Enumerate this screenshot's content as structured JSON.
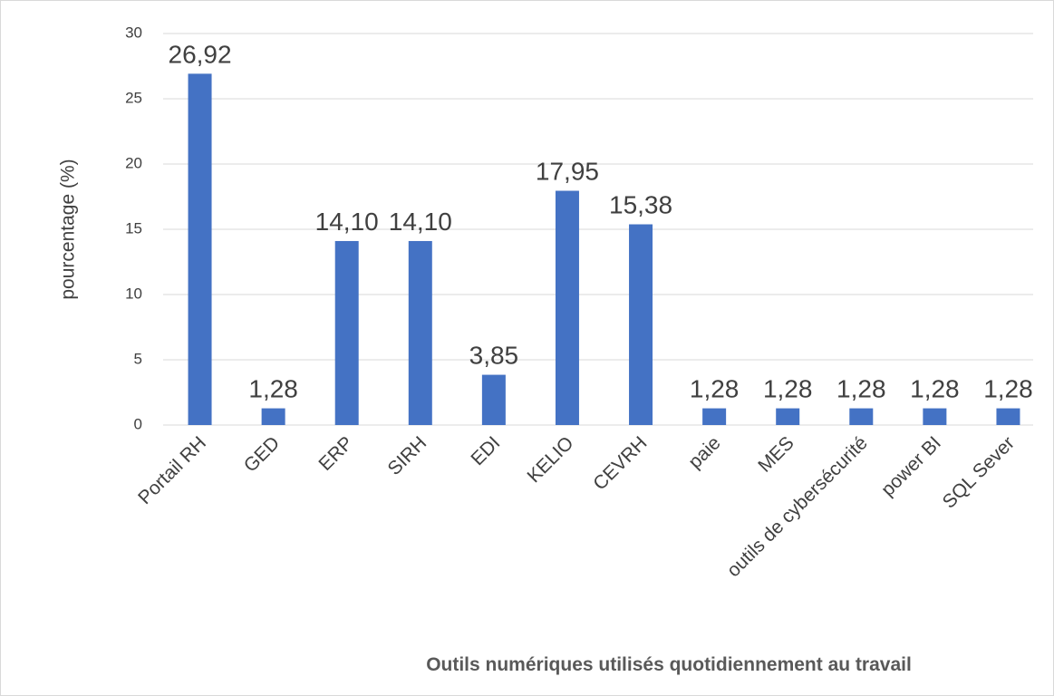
{
  "chart_data": {
    "type": "bar",
    "categories": [
      "Portail RH",
      "GED",
      "ERP",
      "SIRH",
      "EDI",
      "KELIO",
      "CEVRH",
      "paie",
      "MES",
      "outils de cybersécurité",
      "power BI",
      "SQL Sever"
    ],
    "values": [
      26.92,
      1.28,
      14.1,
      14.1,
      3.85,
      17.95,
      15.38,
      1.28,
      1.28,
      1.28,
      1.28,
      1.28
    ],
    "value_labels": [
      "26,92",
      "1,28",
      "14,10",
      "14,10",
      "3,85",
      "17,95",
      "15,38",
      "1,28",
      "1,28",
      "1,28",
      "1,28",
      "1,28"
    ],
    "color": "#4472c4",
    "ylim": [
      0,
      30
    ],
    "yticks": [
      0,
      5,
      10,
      15,
      20,
      25,
      30
    ],
    "grid": true,
    "y_label": "pourcentage (%)",
    "x_label": "Outils numériques utilisés quotidiennement au travail"
  }
}
